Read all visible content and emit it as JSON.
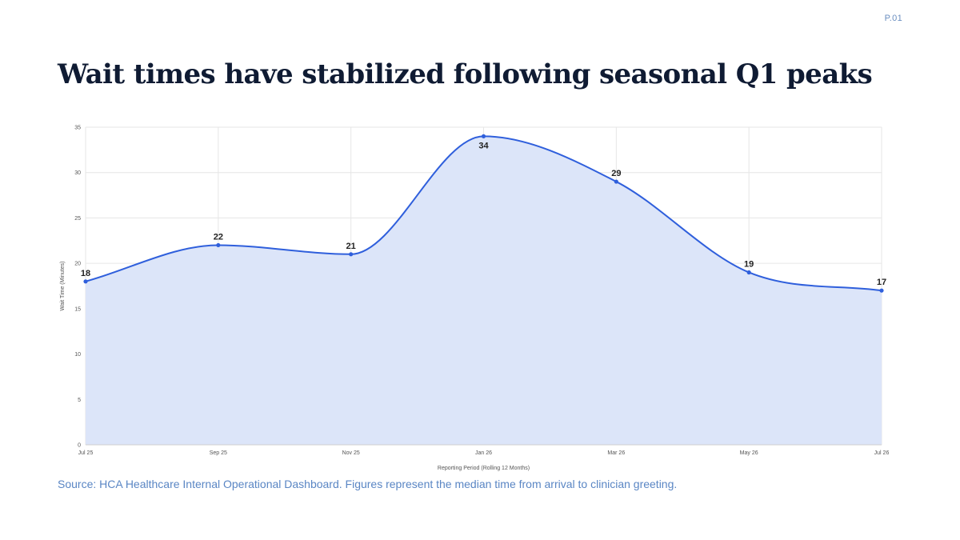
{
  "page": {
    "number": "P.01",
    "title": "Wait times have stabilized following seasonal Q1 peaks",
    "source": "Source: HCA Healthcare Internal Operational Dashboard. Figures represent the median time from arrival to clinician greeting."
  },
  "colors": {
    "line": "#2f5fdc",
    "fill": "#dce5f9",
    "grid": "#e6e6e6",
    "title": "#0f1b33",
    "source": "#5a86c4"
  },
  "chart_data": {
    "type": "area",
    "categories": [
      "Jul 25",
      "Sep 25",
      "Nov 25",
      "Jan 26",
      "Mar 26",
      "May 26",
      "Jul 26"
    ],
    "series": [
      {
        "values": [
          18,
          22,
          21,
          34,
          29,
          19,
          17
        ]
      }
    ],
    "data_labels": [
      "18",
      "22",
      "21",
      "34",
      "29",
      "19",
      "17"
    ],
    "xlabel": "Reporting Period (Rolling 12 Months)",
    "ylabel": "Wait Time (Minutes)",
    "ylim": [
      0,
      35
    ],
    "yticks": [
      0,
      5,
      10,
      15,
      20,
      25,
      30,
      35
    ],
    "smooth": true,
    "grid": true,
    "legend": "none"
  }
}
